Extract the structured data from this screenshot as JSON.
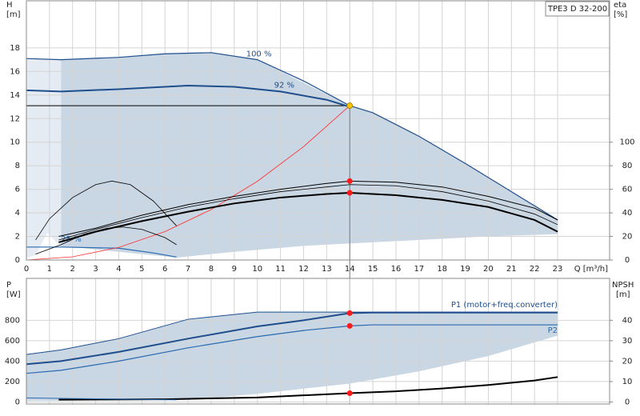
{
  "chart_data": [
    {
      "type": "line",
      "title": "TPE3 D 32-200",
      "x_label": "Q [m³/h]",
      "y_label": "H",
      "y_unit": "[m]",
      "y2_label": "eta",
      "y2_unit": "[%]",
      "xlim": [
        0,
        25.25
      ],
      "xticks": [
        0,
        1,
        2,
        3,
        4,
        5,
        6,
        7,
        8,
        9,
        10,
        11,
        12,
        13,
        14,
        15,
        16,
        17,
        18,
        19,
        20,
        21,
        22,
        23
      ],
      "ylim": [
        0,
        22
      ],
      "yticks": [
        0,
        2,
        4,
        6,
        8,
        10,
        12,
        14,
        16,
        18
      ],
      "y2lim": [
        0,
        220
      ],
      "y2ticks": [
        0,
        20,
        40,
        60,
        80,
        100
      ],
      "grid": true,
      "areas": [
        {
          "color": "#e4ebf2",
          "x": [
            0,
            1.5,
            1.5,
            0.9,
            0.4,
            0
          ],
          "values": [
            17.1,
            17.0,
            1.1,
            2.3,
            0.4,
            0.2
          ]
        },
        {
          "color": "#c9d6e3",
          "x": [
            1.5,
            4,
            6,
            8,
            10,
            14,
            15,
            17,
            19,
            21,
            23,
            23,
            20,
            16,
            12,
            9,
            7,
            6.5,
            4,
            2,
            1.5
          ],
          "values": [
            17.0,
            17.2,
            17.5,
            17.6,
            17.0,
            13.1,
            12.5,
            10.5,
            8.2,
            5.8,
            3.4,
            2.2,
            2.0,
            1.6,
            1.2,
            0.7,
            0.3,
            0.2,
            0.7,
            1.1,
            1.1
          ]
        }
      ],
      "series": [
        {
          "name": "100 %",
          "color": "#1f4e8c",
          "width": 1.2,
          "x": [
            0,
            1.5,
            4,
            6,
            8,
            10,
            12,
            14,
            15,
            17,
            19,
            21,
            23
          ],
          "values": [
            17.1,
            17.0,
            17.2,
            17.5,
            17.6,
            17.0,
            15.2,
            13.1,
            12.5,
            10.5,
            8.2,
            5.8,
            3.4
          ]
        },
        {
          "name": "92 %",
          "color": "#1f4e8c",
          "width": 2,
          "x": [
            0,
            1.5,
            4,
            7,
            9,
            11,
            13,
            14
          ],
          "values": [
            14.4,
            14.3,
            14.5,
            14.8,
            14.7,
            14.3,
            13.6,
            13.0
          ]
        },
        {
          "name": "25 %",
          "color": "#2a6ab0",
          "width": 1.2,
          "x": [
            0,
            1.5,
            4,
            5.5,
            6.5
          ],
          "values": [
            1.1,
            1.1,
            1.0,
            0.6,
            0.25
          ]
        },
        {
          "color": "#ff3030",
          "width": 0.8,
          "x": [
            0,
            2,
            4,
            6,
            8,
            10,
            12,
            14
          ],
          "values": [
            0,
            0.27,
            1.07,
            2.41,
            4.28,
            6.68,
            9.62,
            13.1
          ]
        },
        {
          "color": "#000000",
          "width": 2,
          "axis": "y2",
          "x": [
            1.4,
            3,
            5,
            7,
            9,
            11,
            13,
            14,
            16,
            18,
            20,
            22,
            23
          ],
          "values": [
            15,
            24,
            33,
            41,
            48,
            53,
            56,
            57,
            55,
            51,
            45,
            34,
            24
          ]
        },
        {
          "color": "#000000",
          "width": 1,
          "axis": "y2",
          "x": [
            1.4,
            3,
            5,
            7,
            9,
            11,
            13,
            14,
            16,
            18,
            20,
            22,
            23
          ],
          "values": [
            20,
            27,
            38,
            47,
            54,
            60,
            65,
            67,
            66,
            62,
            54,
            44,
            34
          ]
        },
        {
          "color": "#000000",
          "width": 0.8,
          "axis": "y2",
          "x": [
            1.4,
            3,
            5,
            7,
            9,
            11,
            13,
            14,
            16,
            18,
            20,
            22,
            23
          ],
          "values": [
            17,
            26,
            36,
            45,
            52,
            58,
            62,
            64,
            63,
            58,
            50,
            39,
            30
          ]
        },
        {
          "color": "#000000",
          "width": 0.8,
          "axis": "y2",
          "x": [
            0.4,
            1,
            2,
            3,
            3.7,
            4.5,
            5.5,
            6.5
          ],
          "values": [
            17,
            35,
            53,
            64,
            67,
            64,
            50,
            29
          ]
        },
        {
          "color": "#000000",
          "width": 0.8,
          "axis": "y2",
          "x": [
            0.4,
            1.5,
            2.5,
            3.5,
            4.2,
            5,
            6,
            6.5
          ],
          "values": [
            5,
            13,
            22,
            27,
            28,
            26,
            19,
            13
          ]
        }
      ],
      "points": [
        {
          "x": 14,
          "y": 13.1,
          "color": "#f5c400",
          "guides": true
        },
        {
          "x": 14,
          "y": 67,
          "axis": "y2",
          "color": "#ff1a1a"
        },
        {
          "x": 14,
          "y": 57,
          "axis": "y2",
          "color": "#ff1a1a"
        }
      ]
    },
    {
      "type": "line",
      "y_label": "P",
      "y_unit": "[W]",
      "y2_label": "NPSH",
      "y2_unit": "[m]",
      "xlim": [
        0,
        25.25
      ],
      "xticks": [
        0,
        1,
        2,
        3,
        4,
        5,
        6,
        7,
        8,
        9,
        10,
        11,
        12,
        13,
        14,
        15,
        16,
        17,
        18,
        19,
        20,
        21,
        22,
        23
      ],
      "ylim": [
        -20,
        1210
      ],
      "yticks": [
        0,
        200,
        400,
        600,
        800
      ],
      "y2lim": [
        -1,
        60.5
      ],
      "y2ticks": [
        0,
        10,
        20,
        30,
        40
      ],
      "grid": true,
      "areas": [
        {
          "color": "#c9d6e3",
          "x": [
            0,
            1.5,
            4,
            7,
            10,
            14,
            23,
            23,
            20,
            17,
            14,
            10,
            7,
            1,
            0
          ],
          "values": [
            465,
            510,
            620,
            810,
            880,
            880,
            880,
            650,
            450,
            300,
            180,
            80,
            20,
            10,
            10
          ]
        }
      ],
      "series": [
        {
          "color": "#1f4e8c",
          "width": 1,
          "x": [
            0,
            1.5,
            4,
            7,
            10,
            14,
            23
          ],
          "values": [
            465,
            510,
            620,
            810,
            880,
            880,
            880
          ]
        },
        {
          "name": "P1 (motor+freq.converter)",
          "color": "#1f4e8c",
          "width": 2,
          "x": [
            0,
            1.5,
            4,
            7,
            10,
            12,
            14,
            15,
            23
          ],
          "values": [
            370,
            400,
            490,
            620,
            740,
            800,
            870,
            875,
            875
          ]
        },
        {
          "name": "P2",
          "color": "#2a6ab0",
          "width": 1.2,
          "x": [
            0,
            1.5,
            4,
            7,
            10,
            12,
            14,
            15,
            23
          ],
          "values": [
            280,
            310,
            400,
            530,
            640,
            700,
            745,
            755,
            755
          ]
        },
        {
          "color": "#000000",
          "width": 2,
          "axis": "y2",
          "x": [
            1.4,
            6,
            10,
            14,
            16,
            18,
            20,
            22,
            23
          ],
          "values": [
            1.1,
            1.3,
            2.2,
            4.3,
            5.2,
            6.6,
            8.3,
            10.5,
            12.2
          ]
        },
        {
          "color": "#2a6ab0",
          "width": 1,
          "x": [
            0,
            1.5,
            6.5
          ],
          "values": [
            40,
            35,
            20
          ]
        }
      ],
      "points": [
        {
          "x": 14,
          "y": 870,
          "color": "#ff1a1a"
        },
        {
          "x": 14,
          "y": 745,
          "color": "#ff1a1a"
        },
        {
          "x": 14,
          "y": 4.3,
          "axis": "y2",
          "color": "#ff1a1a"
        }
      ]
    }
  ]
}
